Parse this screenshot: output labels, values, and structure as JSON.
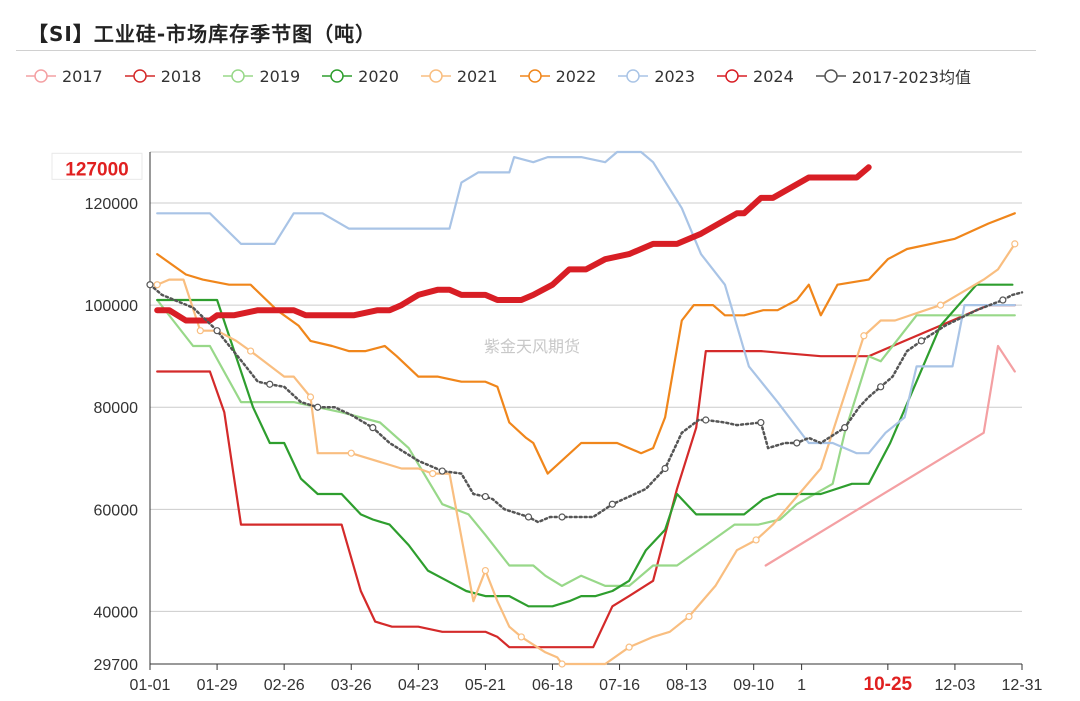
{
  "title": "【SI】工业硅-市场库存季节图（吨）",
  "watermark": "紫金天风期货",
  "chart_data": {
    "type": "line",
    "title": "【SI】工业硅-市场库存季节图（吨）",
    "ylim": [
      29700,
      130000
    ],
    "yticks": [
      40000,
      60000,
      80000,
      100000,
      120000
    ],
    "ymin_label": "29700",
    "max_marker": 127000,
    "max_marker_label": "127000",
    "x_range": [
      0,
      364
    ],
    "xtick_days": [
      0,
      28,
      56,
      84,
      112,
      140,
      168,
      196,
      224,
      252,
      272,
      308,
      336,
      364
    ],
    "xtick_labels": [
      "01-01",
      "01-29",
      "02-26",
      "03-26",
      "04-23",
      "05-21",
      "06-18",
      "07-16",
      "08-13",
      "09-10",
      "1",
      "10-25",
      "12-03",
      "12-31"
    ],
    "highlight_tick": "10-25",
    "series": [
      {
        "name": "2017",
        "color": "#f4a0a3",
        "width": 2.2,
        "dash": "",
        "markers": false,
        "x": [
          257,
          348,
          354,
          361
        ],
        "y": [
          49000,
          75000,
          92000,
          87000
        ]
      },
      {
        "name": "2018",
        "color": "#d42a2a",
        "width": 2.2,
        "dash": "",
        "markers": false,
        "x": [
          3,
          25,
          31,
          38,
          80,
          88,
          94,
          101,
          112,
          122,
          133,
          140,
          145,
          150,
          160,
          175,
          180,
          185,
          193,
          200,
          210,
          220,
          228,
          232,
          245,
          255,
          280,
          300,
          350,
          361
        ],
        "y": [
          87000,
          87000,
          79000,
          57000,
          57000,
          44000,
          38000,
          37000,
          37000,
          36000,
          36000,
          36000,
          35000,
          33000,
          33000,
          33000,
          33000,
          33000,
          41000,
          43000,
          46000,
          64000,
          76000,
          91000,
          91000,
          91000,
          90000,
          90000,
          100000,
          100000
        ]
      },
      {
        "name": "2019",
        "color": "#98d889",
        "width": 2.2,
        "dash": "",
        "markers": false,
        "x": [
          3,
          18,
          25,
          38,
          60,
          80,
          96,
          108,
          122,
          133,
          140,
          150,
          160,
          165,
          172,
          180,
          190,
          200,
          210,
          220,
          232,
          244,
          254,
          263,
          270,
          285,
          290,
          300,
          305,
          320,
          335,
          345,
          361
        ],
        "y": [
          101000,
          92000,
          92000,
          81000,
          81000,
          79000,
          77000,
          72000,
          61000,
          59000,
          55000,
          49000,
          49000,
          47000,
          45000,
          47000,
          45000,
          45000,
          49000,
          49000,
          53000,
          57000,
          57000,
          58000,
          61000,
          65000,
          75000,
          90000,
          89000,
          98000,
          98000,
          98000,
          98000
        ]
      },
      {
        "name": "2020",
        "color": "#2e9e2e",
        "width": 2.2,
        "dash": "",
        "markers": false,
        "x": [
          3,
          22,
          28,
          43,
          50,
          56,
          63,
          70,
          80,
          88,
          93,
          100,
          108,
          116,
          124,
          132,
          140,
          145,
          150,
          158,
          168,
          175,
          180,
          186,
          193,
          200,
          207,
          215,
          220,
          228,
          248,
          256,
          262,
          270,
          280,
          293,
          300,
          309,
          330,
          345,
          360
        ],
        "y": [
          101000,
          101000,
          101000,
          80000,
          73000,
          73000,
          66000,
          63000,
          63000,
          59000,
          58000,
          57000,
          53000,
          48000,
          46000,
          44000,
          43000,
          43000,
          43000,
          41000,
          41000,
          42000,
          43000,
          43000,
          44000,
          46000,
          52000,
          56000,
          63000,
          59000,
          59000,
          62000,
          63000,
          63000,
          63000,
          65000,
          65000,
          73000,
          96000,
          104000,
          104000
        ]
      },
      {
        "name": "2021",
        "color": "#f9be80",
        "width": 2.2,
        "dash": "",
        "markers": true,
        "x": [
          3,
          8,
          14,
          21,
          28,
          36,
          42,
          56,
          60,
          67,
          70,
          80,
          84,
          105,
          112,
          118,
          125,
          135,
          140,
          145,
          150,
          155,
          165,
          170,
          172,
          180,
          190,
          200,
          210,
          217,
          225,
          236,
          245,
          253,
          260,
          280,
          298,
          305,
          311,
          330,
          348,
          354,
          361
        ],
        "y": [
          104000,
          105000,
          105000,
          95000,
          95000,
          93000,
          91000,
          86000,
          86000,
          82000,
          71000,
          71000,
          71000,
          68000,
          68000,
          67000,
          67000,
          42000,
          48000,
          42000,
          37000,
          35000,
          32000,
          31000,
          29700,
          29700,
          29700,
          33000,
          35000,
          36000,
          39000,
          45000,
          52000,
          54000,
          57000,
          68000,
          94000,
          97000,
          97000,
          100000,
          105000,
          107000,
          112000
        ]
      },
      {
        "name": "2022",
        "color": "#f0861b",
        "width": 2.2,
        "dash": "",
        "markers": false,
        "x": [
          3,
          15,
          22,
          33,
          42,
          53,
          62,
          67,
          76,
          83,
          90,
          98,
          103,
          112,
          120,
          130,
          140,
          145,
          150,
          157,
          160,
          166,
          180,
          190,
          195,
          205,
          210,
          215,
          222,
          227,
          235,
          240,
          248,
          256,
          262,
          270,
          275,
          280,
          287,
          300,
          308,
          316,
          336,
          350,
          361
        ],
        "y": [
          110000,
          106000,
          105000,
          104000,
          104000,
          99000,
          96000,
          93000,
          92000,
          91000,
          91000,
          92000,
          90000,
          86000,
          86000,
          85000,
          85000,
          84000,
          77000,
          74000,
          73000,
          67000,
          73000,
          73000,
          73000,
          71000,
          72000,
          78000,
          97000,
          100000,
          100000,
          98000,
          98000,
          99000,
          99000,
          101000,
          104000,
          98000,
          104000,
          105000,
          109000,
          111000,
          113000,
          116000,
          118000
        ]
      },
      {
        "name": "2023",
        "color": "#a9c4e6",
        "width": 2.2,
        "dash": "",
        "markers": false,
        "x": [
          3,
          25,
          38,
          52,
          60,
          72,
          83,
          90,
          105,
          117,
          125,
          130,
          137,
          140,
          150,
          152,
          160,
          166,
          175,
          180,
          190,
          195,
          198,
          205,
          210,
          222,
          230,
          240,
          250,
          262,
          275,
          285,
          295,
          300,
          307,
          315,
          320,
          330,
          335,
          340,
          345,
          361
        ],
        "y": [
          118000,
          118000,
          112000,
          112000,
          118000,
          118000,
          115000,
          115000,
          115000,
          115000,
          115000,
          124000,
          126000,
          126000,
          126000,
          129000,
          128000,
          129000,
          129000,
          129000,
          128000,
          130000,
          130000,
          130000,
          128000,
          119000,
          110000,
          104000,
          88000,
          81000,
          73000,
          73000,
          71000,
          71000,
          75000,
          78000,
          88000,
          88000,
          88000,
          100000,
          100000,
          100000
        ]
      },
      {
        "name": "2024",
        "color": "#d81e25",
        "width": 6,
        "dash": "",
        "markers": false,
        "x": [
          3,
          8,
          15,
          25,
          28,
          35,
          45,
          60,
          65,
          73,
          85,
          95,
          100,
          105,
          112,
          120,
          125,
          130,
          140,
          145,
          150,
          155,
          160,
          168,
          175,
          182,
          190,
          200,
          210,
          220,
          230,
          245,
          248,
          255,
          260,
          275,
          285,
          295,
          300
        ],
        "y": [
          99000,
          99000,
          97000,
          97000,
          98000,
          98000,
          99000,
          99000,
          98000,
          98000,
          98000,
          99000,
          99000,
          100000,
          102000,
          103000,
          103000,
          102000,
          102000,
          101000,
          101000,
          101000,
          102000,
          104000,
          107000,
          107000,
          109000,
          110000,
          112000,
          112000,
          114000,
          118000,
          118000,
          121000,
          121000,
          125000,
          125000,
          125000,
          127000
        ]
      },
      {
        "name": "2017-2023均值",
        "color": "#555555",
        "width": 2.5,
        "dash": "2,3",
        "markers": true,
        "x": [
          0,
          5,
          18,
          28,
          40,
          45,
          50,
          56,
          63,
          70,
          77,
          84,
          93,
          100,
          112,
          122,
          130,
          135,
          140,
          143,
          148,
          158,
          162,
          167,
          172,
          177,
          185,
          193,
          200,
          207,
          215,
          222,
          229,
          232,
          240,
          245,
          255,
          258,
          265,
          270,
          275,
          280,
          290,
          296,
          300,
          305,
          310,
          316,
          322,
          332,
          345,
          356,
          360,
          364
        ],
        "y": [
          104000,
          102000,
          99500,
          95000,
          88000,
          85000,
          84500,
          84000,
          81000,
          80000,
          80000,
          78500,
          76000,
          73000,
          69500,
          67500,
          67000,
          63000,
          62500,
          62000,
          60000,
          58500,
          57500,
          58500,
          58500,
          58500,
          58500,
          61000,
          62500,
          64000,
          68000,
          75000,
          77500,
          77500,
          77000,
          76500,
          77000,
          72000,
          73000,
          73000,
          74000,
          73000,
          76000,
          80000,
          82000,
          84000,
          86000,
          91000,
          93000,
          96000,
          99000,
          101000,
          102000,
          102500
        ]
      }
    ]
  }
}
